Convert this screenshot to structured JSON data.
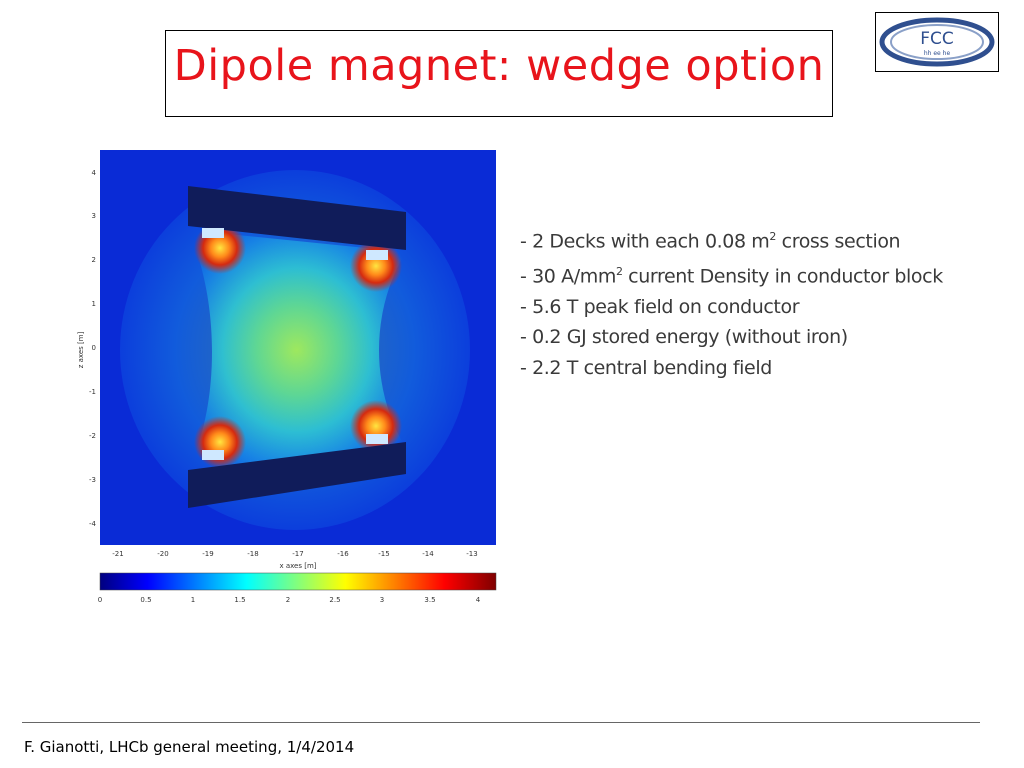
{
  "slide": {
    "title": "Dipole magnet: wedge option",
    "logo_text": "FCC",
    "logo_subtext": "hh ee he",
    "footer": "F. Gianotti, LHCb general meeting, 1/4/2014"
  },
  "bullets": [
    {
      "pre": "- 2 Decks with each 0.08 m",
      "sup": "2",
      "post": " cross section"
    },
    {
      "pre": "- 30 A/mm",
      "sup": "2",
      "post": " current Density in conductor block"
    },
    {
      "pre": "- 5.6 T peak field on conductor",
      "sup": "",
      "post": ""
    },
    {
      "pre": "- 0.2 GJ stored energy (without iron)",
      "sup": "",
      "post": ""
    },
    {
      "pre": "- 2.2 T central bending field",
      "sup": "",
      "post": ""
    }
  ],
  "figure": {
    "xlabel": "x axes [m]",
    "ylabel": "z axes [m]",
    "x_ticks": [
      "-21",
      "-20",
      "-19",
      "-18",
      "-17",
      "-16",
      "-15",
      "-14",
      "-13"
    ],
    "y_ticks": [
      "4",
      "3",
      "2",
      "1",
      "0",
      "-1",
      "-2",
      "-3",
      "-4"
    ],
    "colorbar_ticks": [
      "0",
      "0.5",
      "1",
      "1.5",
      "2",
      "2.5",
      "3",
      "3.5",
      "4"
    ],
    "colors": {
      "background": "#0a2bd6",
      "deck": "#101c5a",
      "hot": "#d42a10",
      "mid": "#8be46a"
    }
  }
}
